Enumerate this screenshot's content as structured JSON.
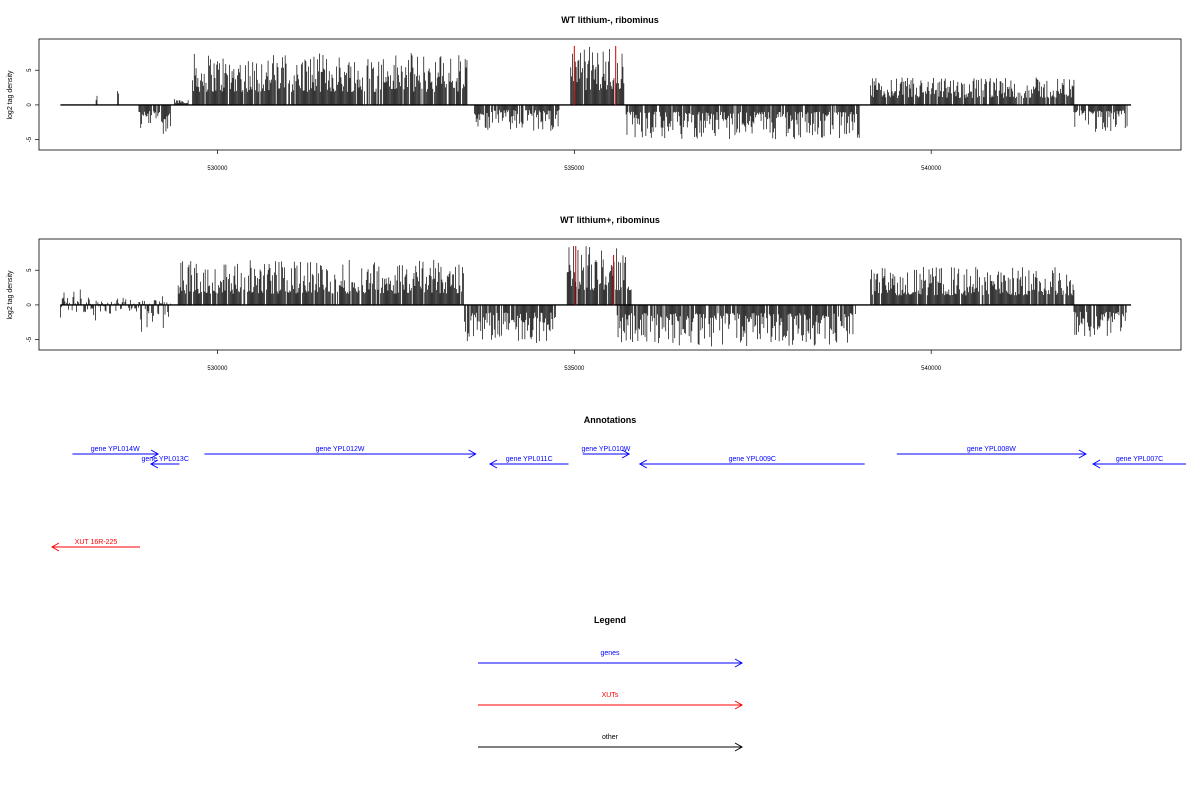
{
  "colors": {
    "gene": "#0000ff",
    "xut": "#ff0000",
    "other": "#000000",
    "axis": "#000000",
    "bars": "#000000",
    "highlight": "#cc0000"
  },
  "chart_data": [
    {
      "type": "bar",
      "title": "WT lithium-, ribominus",
      "ylabel": "log2 tag density",
      "xlim": [
        527500,
        543500
      ],
      "ylim": [
        -6.5,
        9.5
      ],
      "xticks": [
        530000,
        535000,
        540000
      ],
      "xtick_labels": [
        "530000",
        "535000",
        "540000"
      ],
      "yticks": [
        -5,
        0,
        5
      ],
      "ytick_labels": [
        "-5",
        "0",
        "5"
      ],
      "baseline": [
        527800,
        542800
      ],
      "segments": [
        {
          "start": 528300,
          "end": 528320,
          "min": 0,
          "max": 2
        },
        {
          "start": 528600,
          "end": 528620,
          "min": 0,
          "max": 2.3
        },
        {
          "start": 528900,
          "end": 529350,
          "min": -4.2,
          "max": 0
        },
        {
          "start": 529400,
          "end": 529600,
          "min": 0,
          "max": 1
        },
        {
          "start": 529650,
          "end": 533500,
          "min": 0,
          "max": 7.5
        },
        {
          "start": 533600,
          "end": 534800,
          "min": -3.8,
          "max": 0
        },
        {
          "start": 534950,
          "end": 535700,
          "min": 0,
          "max": 8.5
        },
        {
          "start": 535700,
          "end": 539000,
          "min": -5,
          "max": 0
        },
        {
          "start": 539150,
          "end": 542000,
          "min": 0,
          "max": 4
        },
        {
          "start": 542000,
          "end": 542750,
          "min": -4,
          "max": 0
        }
      ],
      "highlights": [
        {
          "x": 535000,
          "y": 8.5
        },
        {
          "x": 535580,
          "y": 8.5
        }
      ]
    },
    {
      "type": "bar",
      "title": "WT lithium+, ribominus",
      "ylabel": "log2 tag density",
      "xlim": [
        527500,
        543500
      ],
      "ylim": [
        -6.5,
        9.5
      ],
      "xticks": [
        530000,
        535000,
        540000
      ],
      "xtick_labels": [
        "530000",
        "535000",
        "540000"
      ],
      "yticks": [
        -5,
        0,
        5
      ],
      "ytick_labels": [
        "-5",
        "0",
        "5"
      ],
      "baseline": [
        527800,
        542800
      ],
      "segments": [
        {
          "start": 527800,
          "end": 528300,
          "min": -2.5,
          "max": 2.6
        },
        {
          "start": 528300,
          "end": 528900,
          "min": -1.5,
          "max": 1.2
        },
        {
          "start": 528900,
          "end": 529350,
          "min": -4.2,
          "max": 1.5
        },
        {
          "start": 529450,
          "end": 533450,
          "min": 0,
          "max": 6.5
        },
        {
          "start": 533450,
          "end": 534750,
          "min": -5.5,
          "max": 0
        },
        {
          "start": 534900,
          "end": 535800,
          "min": 0,
          "max": 8.5
        },
        {
          "start": 535600,
          "end": 538950,
          "min": -6,
          "max": 0
        },
        {
          "start": 539150,
          "end": 542000,
          "min": 0,
          "max": 5.5
        },
        {
          "start": 542000,
          "end": 542750,
          "min": -5,
          "max": 0
        }
      ],
      "highlights": [
        {
          "x": 535020,
          "y": 8.5
        },
        {
          "x": 535550,
          "y": 7.2
        }
      ]
    }
  ],
  "annotations": {
    "title": "Annotations",
    "genes": [
      {
        "label": "gene YPL014W",
        "start": 527800,
        "end": 529000,
        "row": 0,
        "dir": "right"
      },
      {
        "label": "gene YPL013C",
        "start": 528900,
        "end": 529300,
        "row": 1,
        "dir": "left"
      },
      {
        "label": "gene YPL012W",
        "start": 529650,
        "end": 533450,
        "row": 0,
        "dir": "right"
      },
      {
        "label": "gene YPL011C",
        "start": 533650,
        "end": 534750,
        "row": 1,
        "dir": "left"
      },
      {
        "label": "gene YPL010W",
        "start": 534950,
        "end": 535600,
        "row": 0,
        "dir": "right"
      },
      {
        "label": "gene YPL009C",
        "start": 535750,
        "end": 538900,
        "row": 1,
        "dir": "left"
      },
      {
        "label": "gene YPL008W",
        "start": 539350,
        "end": 542000,
        "row": 0,
        "dir": "right"
      },
      {
        "label": "gene YPL007C",
        "start": 542100,
        "end": 543500,
        "row": 1,
        "dir": "left"
      }
    ],
    "xuts": [
      {
        "label": "XUT 16R-225",
        "start": 527500,
        "end": 528750,
        "dir": "left"
      }
    ]
  },
  "legend": {
    "title": "Legend",
    "items": [
      {
        "label": "genes",
        "kind": "gene"
      },
      {
        "label": "XUTs",
        "kind": "xut"
      },
      {
        "label": "other",
        "kind": "other"
      }
    ]
  }
}
